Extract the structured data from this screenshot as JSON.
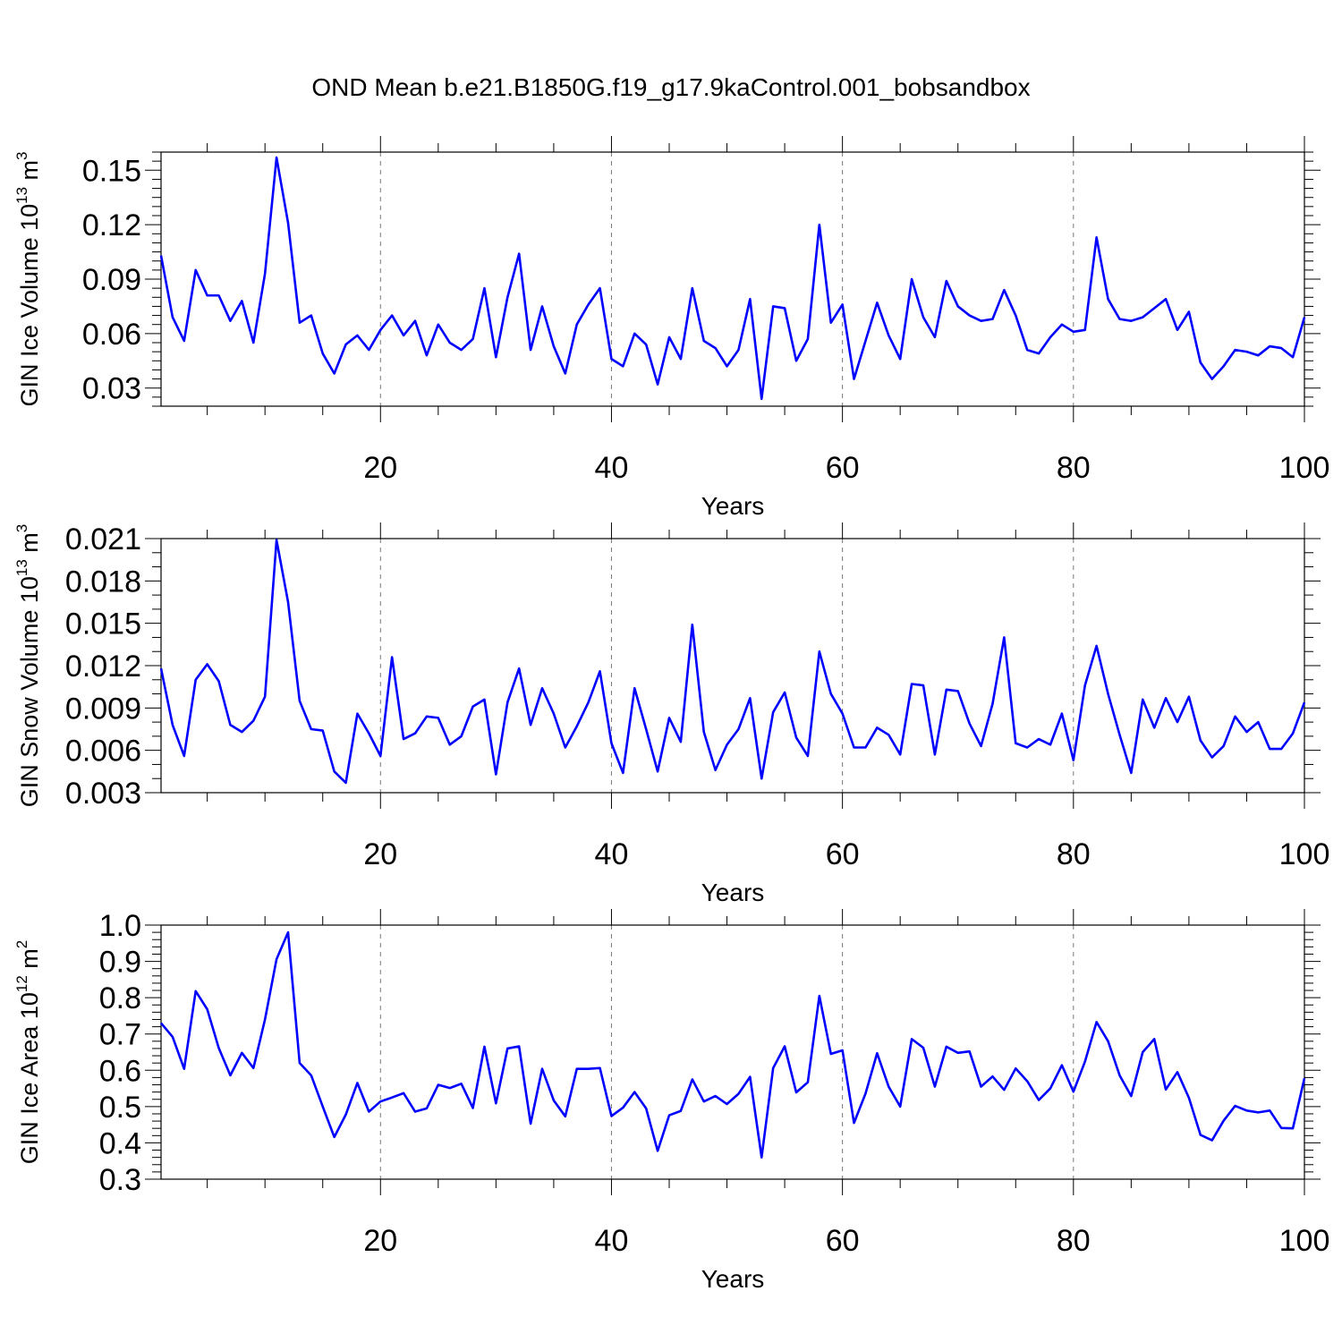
{
  "title": "OND Mean b.e21.B1850G.f19_g17.9kaControl.001_bobsandbox",
  "line_color": "#0000ff",
  "chart_data": [
    {
      "type": "line",
      "ylabel": "GIN Ice Volume 10",
      "ylabel_exp": "13",
      "ylabel_unit": " m",
      "ylabel_unit_exp": "3",
      "xlabel": "Years",
      "xlim": [
        1,
        100
      ],
      "ylim": [
        0.02,
        0.16
      ],
      "yticks": [
        0.03,
        0.06,
        0.09,
        0.12,
        0.15
      ],
      "ytick_labels": [
        "0.03",
        "0.06",
        "0.09",
        "0.12",
        "0.15"
      ],
      "xticks": [
        20,
        40,
        60,
        80,
        100
      ],
      "xtick_labels": [
        "20",
        "40",
        "60",
        "80",
        "100"
      ],
      "x_start": 1,
      "values": [
        0.103,
        0.069,
        0.056,
        0.095,
        0.081,
        0.081,
        0.067,
        0.078,
        0.055,
        0.093,
        0.157,
        0.121,
        0.066,
        0.07,
        0.049,
        0.038,
        0.054,
        0.059,
        0.051,
        0.062,
        0.07,
        0.059,
        0.067,
        0.048,
        0.065,
        0.055,
        0.051,
        0.057,
        0.085,
        0.047,
        0.08,
        0.104,
        0.051,
        0.075,
        0.053,
        0.038,
        0.065,
        0.076,
        0.085,
        0.046,
        0.042,
        0.06,
        0.054,
        0.032,
        0.058,
        0.046,
        0.085,
        0.056,
        0.052,
        0.042,
        0.051,
        0.079,
        0.024,
        0.075,
        0.074,
        0.045,
        0.057,
        0.12,
        0.066,
        0.076,
        0.035,
        0.056,
        0.077,
        0.059,
        0.046,
        0.09,
        0.069,
        0.058,
        0.089,
        0.075,
        0.07,
        0.067,
        0.068,
        0.084,
        0.07,
        0.051,
        0.049,
        0.058,
        0.065,
        0.061,
        0.062,
        0.113,
        0.079,
        0.068,
        0.067,
        0.069,
        0.074,
        0.079,
        0.062,
        0.072,
        0.044,
        0.035,
        0.042,
        0.051,
        0.05,
        0.048,
        0.053,
        0.052,
        0.047,
        0.069
      ]
    },
    {
      "type": "line",
      "ylabel": "GIN Snow Volume 10",
      "ylabel_exp": "13",
      "ylabel_unit": " m",
      "ylabel_unit_exp": "3",
      "xlabel": "Years",
      "xlim": [
        1,
        100
      ],
      "ylim": [
        0.003,
        0.021
      ],
      "yticks": [
        0.003,
        0.006,
        0.009,
        0.012,
        0.015,
        0.018,
        0.021
      ],
      "ytick_labels": [
        "0.003",
        "0.006",
        "0.009",
        "0.012",
        "0.015",
        "0.018",
        "0.021"
      ],
      "xticks": [
        20,
        40,
        60,
        80,
        100
      ],
      "xtick_labels": [
        "20",
        "40",
        "60",
        "80",
        "100"
      ],
      "x_start": 1,
      "values": [
        0.0118,
        0.0078,
        0.0056,
        0.011,
        0.0121,
        0.0109,
        0.0078,
        0.0073,
        0.0081,
        0.0098,
        0.0209,
        0.0165,
        0.0095,
        0.0075,
        0.0074,
        0.0045,
        0.0037,
        0.0086,
        0.0072,
        0.0056,
        0.0126,
        0.0068,
        0.0072,
        0.0084,
        0.0083,
        0.0064,
        0.007,
        0.0091,
        0.0096,
        0.0043,
        0.0094,
        0.0118,
        0.0078,
        0.0104,
        0.0086,
        0.0062,
        0.0077,
        0.0094,
        0.0116,
        0.0065,
        0.0044,
        0.0104,
        0.0075,
        0.0045,
        0.0083,
        0.0066,
        0.0149,
        0.0073,
        0.0046,
        0.0064,
        0.0075,
        0.0097,
        0.004,
        0.0087,
        0.0101,
        0.0069,
        0.0056,
        0.013,
        0.01,
        0.0086,
        0.0062,
        0.0062,
        0.0076,
        0.0071,
        0.0057,
        0.0107,
        0.0106,
        0.0057,
        0.0103,
        0.0102,
        0.0079,
        0.0063,
        0.0093,
        0.014,
        0.0065,
        0.0062,
        0.0068,
        0.0064,
        0.0086,
        0.0053,
        0.0106,
        0.0134,
        0.01,
        0.0071,
        0.0044,
        0.0096,
        0.0076,
        0.0097,
        0.008,
        0.0098,
        0.0067,
        0.0055,
        0.0063,
        0.0084,
        0.0073,
        0.008,
        0.0061,
        0.0061,
        0.0072,
        0.0094
      ]
    },
    {
      "type": "line",
      "ylabel": "GIN Ice Area 10",
      "ylabel_exp": "12",
      "ylabel_unit": " m",
      "ylabel_unit_exp": "2",
      "xlabel": "Years",
      "xlim": [
        1,
        100
      ],
      "ylim": [
        0.3,
        1.0
      ],
      "yticks": [
        0.3,
        0.4,
        0.5,
        0.6,
        0.7,
        0.8,
        0.9,
        1.0
      ],
      "ytick_labels": [
        "0.3",
        "0.4",
        "0.5",
        "0.6",
        "0.7",
        "0.8",
        "0.9",
        "1.0"
      ],
      "xticks": [
        20,
        40,
        60,
        80,
        100
      ],
      "xtick_labels": [
        "20",
        "40",
        "60",
        "80",
        "100"
      ],
      "x_start": 1,
      "values": [
        0.73,
        0.692,
        0.604,
        0.818,
        0.768,
        0.661,
        0.586,
        0.648,
        0.606,
        0.74,
        0.906,
        0.98,
        0.62,
        0.586,
        0.5,
        0.416,
        0.478,
        0.565,
        0.486,
        0.514,
        0.525,
        0.537,
        0.486,
        0.495,
        0.56,
        0.551,
        0.563,
        0.496,
        0.665,
        0.509,
        0.66,
        0.666,
        0.453,
        0.604,
        0.517,
        0.473,
        0.604,
        0.604,
        0.606,
        0.474,
        0.497,
        0.54,
        0.495,
        0.378,
        0.476,
        0.488,
        0.575,
        0.514,
        0.529,
        0.507,
        0.535,
        0.582,
        0.36,
        0.606,
        0.666,
        0.539,
        0.567,
        0.805,
        0.645,
        0.655,
        0.455,
        0.536,
        0.647,
        0.555,
        0.5,
        0.686,
        0.662,
        0.555,
        0.665,
        0.648,
        0.652,
        0.555,
        0.583,
        0.546,
        0.605,
        0.57,
        0.518,
        0.55,
        0.614,
        0.541,
        0.624,
        0.733,
        0.68,
        0.586,
        0.529,
        0.65,
        0.686,
        0.547,
        0.595,
        0.524,
        0.422,
        0.407,
        0.461,
        0.502,
        0.489,
        0.484,
        0.489,
        0.441,
        0.44,
        0.578
      ]
    }
  ]
}
